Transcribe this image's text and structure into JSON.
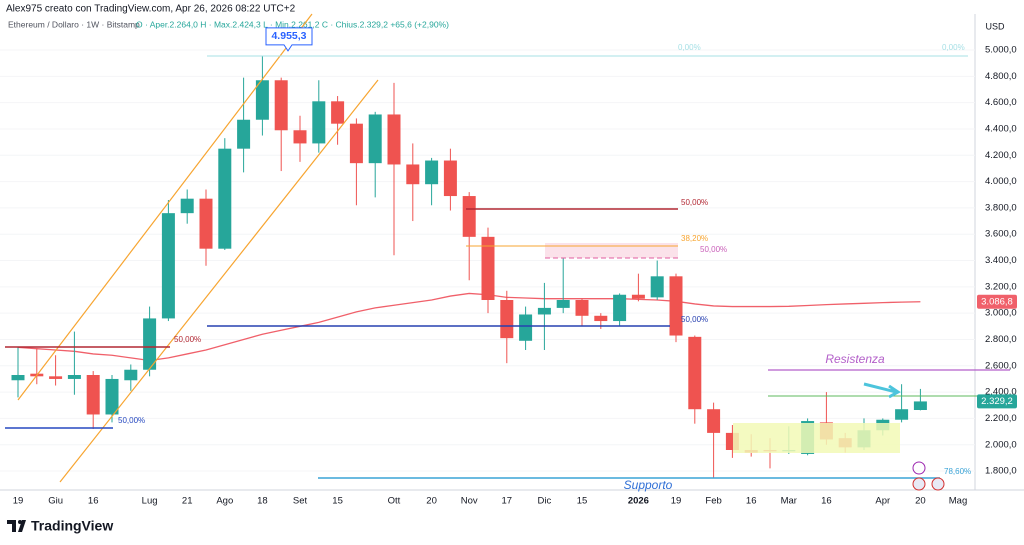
{
  "header": {
    "author": "Alex975 creato con TradingView.com, Apr 26, 2026 08:22 UTC+2",
    "symbol": "Ethereum / Dollaro · 1W · Bitstamp",
    "quote": "O · Aper.2.264,0  H · Max.2.424,3  L · Min.2.261,2  C · Chius.2.329,2  +65,6 (+2,90%)"
  },
  "footer": {
    "logo": "TradingView"
  },
  "chart_data": {
    "type": "candlestick",
    "axis_unit": "USD",
    "categories": [
      "19",
      null,
      "Giu",
      null,
      "16",
      null,
      null,
      "Lug",
      null,
      "21",
      null,
      "Ago",
      null,
      "18",
      null,
      "Set",
      null,
      "15",
      null,
      null,
      "Ott",
      null,
      "20",
      null,
      "Nov",
      null,
      "17",
      null,
      "Dic",
      null,
      "15",
      null,
      null,
      "2026",
      null,
      "19",
      null,
      "Feb",
      null,
      "16",
      null,
      "Mar",
      null,
      "16",
      null,
      null,
      "Apr",
      null,
      "20",
      null,
      "Mag"
    ],
    "open": [
      2490,
      2540,
      2520,
      2500,
      2530,
      2230,
      2490,
      2570,
      2960,
      3760,
      3870,
      3490,
      4250,
      4470,
      4770,
      4390,
      4290,
      4610,
      4440,
      4140,
      4510,
      4130,
      3980,
      4160,
      3890,
      3580,
      3100,
      2790,
      2990,
      3040,
      3100,
      2980,
      2940,
      3140,
      3120,
      3280,
      2820,
      2270,
      2090,
      1960,
      1960,
      1950,
      1930,
      2170,
      2050,
      1980,
      2110,
      2190,
      2264.0,
      null,
      null
    ],
    "high": [
      2740,
      2730,
      2680,
      2860,
      2560,
      2530,
      2610,
      3050,
      3860,
      3940,
      3940,
      4330,
      4790,
      4955.3,
      4790,
      4500,
      4770,
      4650,
      4480,
      4530,
      4750,
      4290,
      4180,
      4250,
      3920,
      3650,
      3170,
      3050,
      3230,
      3420,
      3110,
      3000,
      3150,
      3300,
      3400,
      3300,
      2830,
      2320,
      2150,
      2080,
      2050,
      2140,
      2200,
      2400,
      2090,
      2200,
      2200,
      2460,
      2424.3,
      null,
      null
    ],
    "low": [
      2360,
      2460,
      2450,
      2380,
      2120,
      2170,
      2410,
      2520,
      2940,
      3680,
      3360,
      3480,
      4070,
      4350,
      4080,
      4150,
      4220,
      4280,
      3820,
      3880,
      3440,
      3700,
      3820,
      3780,
      3250,
      3000,
      2620,
      2720,
      2720,
      3000,
      2900,
      2880,
      2900,
      3090,
      3100,
      2780,
      2160,
      1750,
      1900,
      1910,
      1820,
      1930,
      1920,
      2000,
      1940,
      1960,
      2070,
      2170,
      2261.2,
      null,
      null
    ],
    "close": [
      2530,
      2520,
      2500,
      2530,
      2230,
      2500,
      2570,
      2960,
      3760,
      3870,
      3490,
      4250,
      4470,
      4770,
      4390,
      4290,
      4610,
      4440,
      4140,
      4510,
      4130,
      3980,
      4160,
      3890,
      3580,
      3100,
      2810,
      2990,
      3040,
      3100,
      2980,
      2940,
      3140,
      3110,
      3280,
      2830,
      2270,
      2090,
      1960,
      1940,
      1950,
      1960,
      2180,
      2040,
      1980,
      2110,
      2190,
      2270,
      2329.2,
      null,
      null
    ],
    "up_color": "#26a69a",
    "down_color": "#ef5350",
    "moving_average": {
      "color": "#f0606a",
      "values": [
        2740,
        2730,
        2720,
        2710,
        2690,
        2680,
        2660,
        2640,
        2660,
        2690,
        2720,
        2760,
        2800,
        2840,
        2870,
        2900,
        2930,
        2970,
        3010,
        3040,
        3060,
        3080,
        3100,
        3130,
        3150,
        3140,
        3120,
        3115,
        3110,
        3110,
        3110,
        3110,
        3110,
        3105,
        3100,
        3090,
        3070,
        3055,
        3050,
        3050,
        3050,
        3052,
        3058,
        3065,
        3070,
        3075,
        3080,
        3084,
        3086.8,
        null,
        null
      ]
    },
    "ylim": [
      1656,
      5228
    ],
    "yticks": [
      {
        "value": 1800,
        "label": "1.800,0"
      },
      {
        "value": 2000,
        "label": "2.000,0"
      },
      {
        "value": 2200,
        "label": "2.200,0"
      },
      {
        "value": 2400,
        "label": "2.400,0"
      },
      {
        "value": 2600,
        "label": "2.600,0"
      },
      {
        "value": 2800,
        "label": "2.800,0"
      },
      {
        "value": 3000,
        "label": "3.000,0"
      },
      {
        "value": 3200,
        "label": "3.200,0"
      },
      {
        "value": 3400,
        "label": "3.400,0"
      },
      {
        "value": 3600,
        "label": "3.600,0"
      },
      {
        "value": 3800,
        "label": "3.800,0"
      },
      {
        "value": 4000,
        "label": "4.000,0"
      },
      {
        "value": 4200,
        "label": "4.200,0"
      },
      {
        "value": 4400,
        "label": "4.400,0"
      },
      {
        "value": 4600,
        "label": "4.600,0"
      },
      {
        "value": 4800,
        "label": "4.800,0"
      },
      {
        "value": 5000,
        "label": "5.000,0"
      }
    ],
    "last_price": {
      "value": 2329.2,
      "label": "2.329,2"
    },
    "ma_last": {
      "value": 3086.8,
      "label": "3.086,8"
    },
    "high_marker": {
      "value": 4955.3,
      "label": "4.955,3"
    },
    "annotations": [
      "0,00%",
      "0,00%",
      "50,00%",
      "38,20%",
      "50,00%",
      "50,00%",
      "50,00%",
      "50,00%",
      "Resistenza",
      "Supporto",
      "78,60%"
    ]
  }
}
